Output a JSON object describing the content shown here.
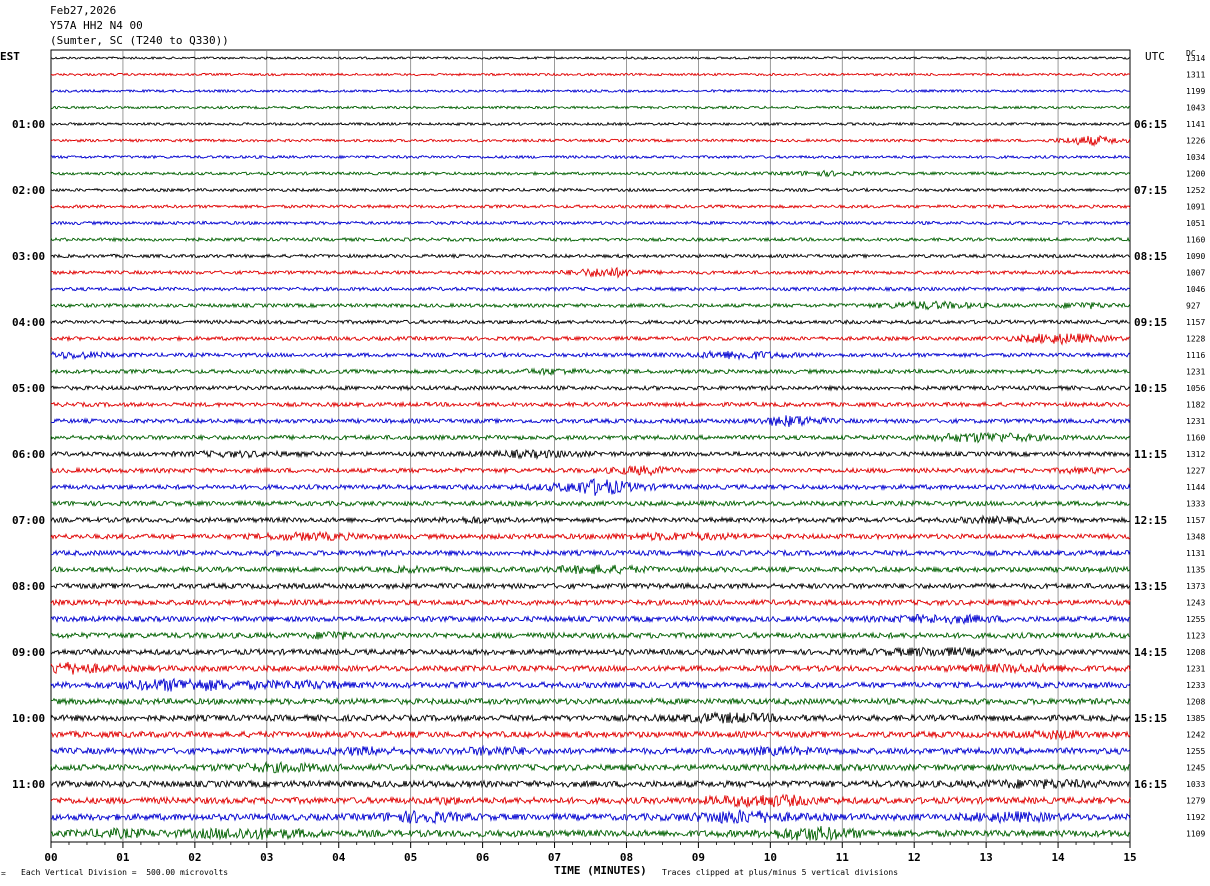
{
  "header": {
    "date": "Feb27,2026",
    "station": "Y57A HH2 N4 00",
    "location": "(Sumter, SC (T240 to Q330))"
  },
  "chart_data": {
    "type": "line",
    "left_timezone": "EST",
    "right_timezone": "UTC",
    "dc_label": "DC",
    "xlabel": "TIME (MINUTES)",
    "x_ticks": [
      "00",
      "01",
      "02",
      "03",
      "04",
      "05",
      "06",
      "07",
      "08",
      "09",
      "10",
      "11",
      "12",
      "13",
      "14",
      "15"
    ],
    "xlim": [
      0,
      15
    ],
    "trace_colors": [
      "#000000",
      "#e00000",
      "#0000d0",
      "#006000"
    ],
    "est_hour_labels": [
      "01:00",
      "02:00",
      "03:00",
      "04:00",
      "05:00",
      "06:00",
      "07:00",
      "08:00",
      "09:00",
      "10:00",
      "11:00"
    ],
    "utc_hour_labels": [
      "06:15",
      "07:15",
      "08:15",
      "09:15",
      "10:15",
      "11:15",
      "12:15",
      "13:15",
      "14:15",
      "15:15",
      "16:15"
    ],
    "dc_offsets": [
      "1314",
      "1311",
      "1199",
      "1043",
      "1141",
      "1226",
      "1034",
      "1200",
      "1252",
      "1091",
      "1051",
      "1160",
      "1090",
      "1007",
      "1046",
      "927",
      "1157",
      "1228",
      "1116",
      "1231",
      "1056",
      "1182",
      "1231",
      "1160",
      "1312",
      "1227",
      "1144",
      "1333",
      "1157",
      "1348",
      "1131",
      "1135",
      "1373",
      "1243",
      "1255",
      "1123",
      "1208",
      "1231",
      "1233",
      "1208",
      "1385",
      "1242",
      "1255",
      "1245",
      "1033",
      "1279",
      "1192",
      "1109"
    ],
    "footer_left": "Each Vertical Division =  500.00 microvolts",
    "footer_right": "Traces clipped at plus/minus 5 vertical divisions"
  }
}
